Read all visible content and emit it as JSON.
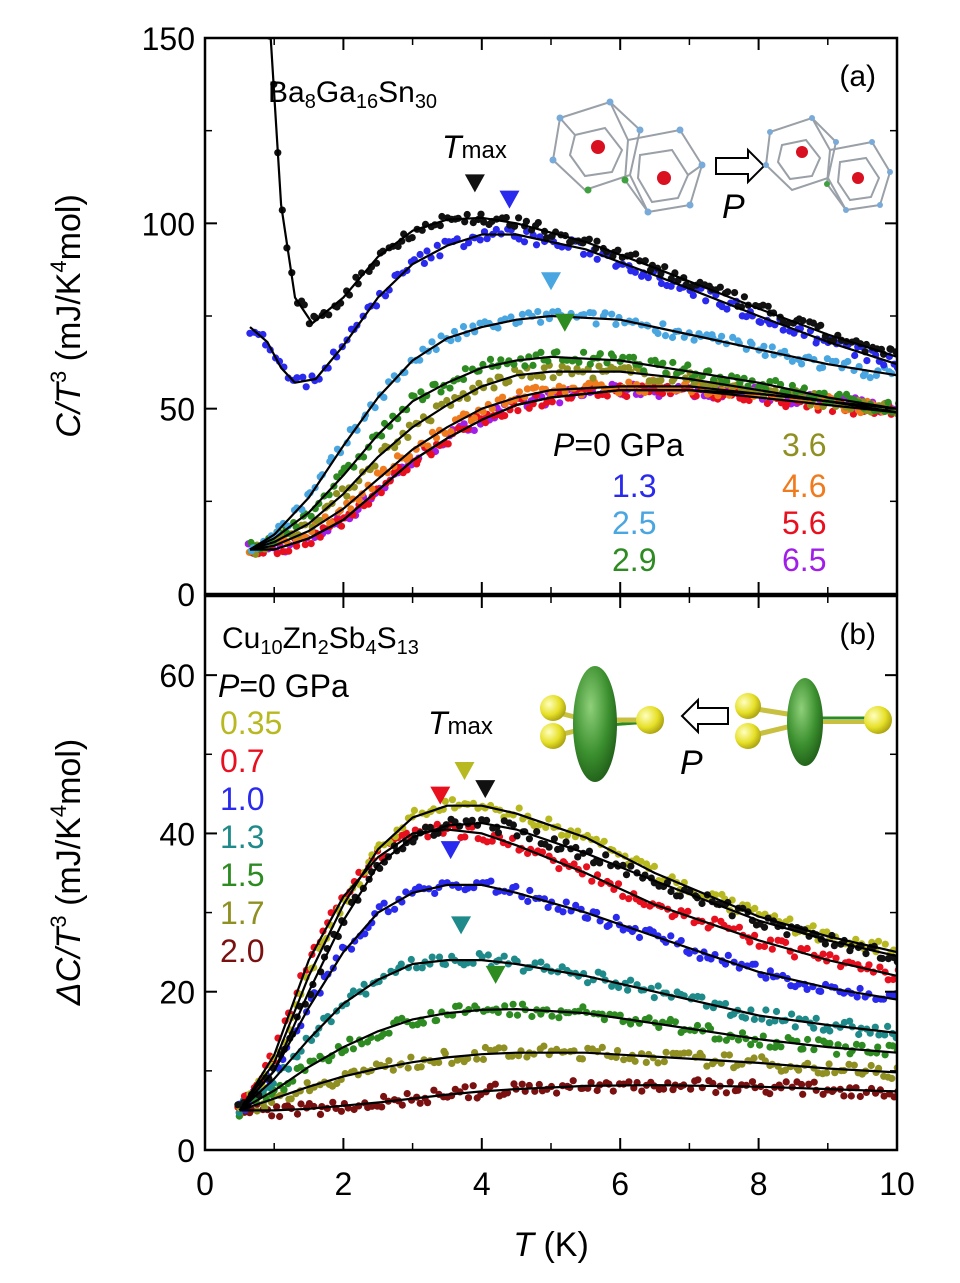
{
  "figure": {
    "x_axis": {
      "label_var": "T",
      "label_unit": " (K)",
      "ticks": [
        "0",
        "2",
        "4",
        "6",
        "8",
        "10"
      ],
      "range": [
        0,
        10
      ]
    }
  },
  "chart_data": [
    {
      "type": "scatter",
      "panel_label": "(a)",
      "compound": {
        "parts": [
          "Ba",
          "8",
          "Ga",
          "16",
          "Sn",
          "30"
        ]
      },
      "ylabel": {
        "left": "C/T",
        "sup": "3",
        "unit": " (mJ/K",
        "unit_sup": "4",
        "unit_end": "mol)"
      },
      "ylim": [
        0,
        150
      ],
      "yticks": [
        "0",
        "50",
        "100",
        "150"
      ],
      "tmax_label": {
        "main": "T",
        "sub": "max"
      },
      "pressure_arrow_label": "P",
      "legend": {
        "header_prefix": "P",
        "header_rest": "=0  GPa",
        "entries": [
          "1.3",
          "2.5",
          "2.9",
          "3.6",
          "4.6",
          "5.6",
          "6.5"
        ]
      },
      "series": [
        {
          "pressure": "0",
          "color": "#111111",
          "tmax": 3.9,
          "fit": [
            [
              0.95,
              150
            ],
            [
              1.1,
              105
            ],
            [
              1.3,
              80
            ],
            [
              1.55,
              73
            ],
            [
              2.0,
              80
            ],
            [
              2.5,
              91
            ],
            [
              3.0,
              98
            ],
            [
              3.5,
              101
            ],
            [
              4.0,
              101.5
            ],
            [
              4.5,
              100
            ],
            [
              5.5,
              95
            ],
            [
              6.5,
              88
            ],
            [
              8.0,
              77
            ],
            [
              9.0,
              70
            ],
            [
              10,
              64
            ]
          ]
        },
        {
          "pressure": "1.3",
          "color": "#2a2aee",
          "tmax": 4.4,
          "fit": [
            [
              0.65,
              72
            ],
            [
              0.9,
              68
            ],
            [
              1.1,
              61
            ],
            [
              1.3,
              57
            ],
            [
              1.6,
              58
            ],
            [
              2.0,
              67
            ],
            [
              2.5,
              80
            ],
            [
              3.0,
              89
            ],
            [
              3.5,
              94
            ],
            [
              4.0,
              97
            ],
            [
              4.5,
              97
            ],
            [
              5.5,
              93
            ],
            [
              6.5,
              86
            ],
            [
              8.0,
              75
            ],
            [
              9.0,
              68
            ],
            [
              10,
              62
            ]
          ]
        },
        {
          "pressure": "2.5",
          "color": "#4aa6e0",
          "tmax": 5.0,
          "fit": [
            [
              0.65,
              12
            ],
            [
              1.0,
              16
            ],
            [
              1.5,
              26
            ],
            [
              2.0,
              40
            ],
            [
              2.5,
              53
            ],
            [
              3.0,
              63
            ],
            [
              3.5,
              69
            ],
            [
              4.0,
              72
            ],
            [
              4.5,
              74
            ],
            [
              5.0,
              75
            ],
            [
              6.0,
              74
            ],
            [
              7.0,
              70
            ],
            [
              8.0,
              66
            ],
            [
              9.0,
              62
            ],
            [
              10,
              59
            ]
          ]
        },
        {
          "pressure": "2.9",
          "color": "#2e8b22",
          "tmax": 5.2,
          "fit": [
            [
              0.65,
              12
            ],
            [
              1.0,
              15
            ],
            [
              1.5,
              22
            ],
            [
              2.0,
              32
            ],
            [
              2.5,
              43
            ],
            [
              3.0,
              52
            ],
            [
              3.5,
              57
            ],
            [
              4.0,
              61
            ],
            [
              4.5,
              63
            ],
            [
              5.0,
              64
            ],
            [
              6.0,
              63
            ],
            [
              7.0,
              60
            ],
            [
              8.0,
              57
            ],
            [
              9.0,
              53
            ],
            [
              10,
              50
            ]
          ]
        },
        {
          "pressure": "3.6",
          "color": "#8f8f22",
          "tmax": null,
          "fit": [
            [
              0.65,
              12
            ],
            [
              1.0,
              14
            ],
            [
              1.5,
              19
            ],
            [
              2.0,
              27
            ],
            [
              2.5,
              37
            ],
            [
              3.0,
              45
            ],
            [
              3.5,
              51
            ],
            [
              4.0,
              56
            ],
            [
              4.5,
              59
            ],
            [
              5.0,
              60
            ],
            [
              6.0,
              60
            ],
            [
              7.0,
              58
            ],
            [
              8.0,
              55
            ],
            [
              9.0,
              52
            ],
            [
              10,
              49
            ]
          ]
        },
        {
          "pressure": "4.6",
          "color": "#f07a1e",
          "tmax": null,
          "fit": [
            [
              0.65,
              12
            ],
            [
              1.0,
              13
            ],
            [
              1.5,
              17
            ],
            [
              2.0,
              23
            ],
            [
              2.5,
              31
            ],
            [
              3.0,
              39
            ],
            [
              3.5,
              45
            ],
            [
              4.0,
              50
            ],
            [
              4.5,
              53
            ],
            [
              5.0,
              55
            ],
            [
              6.0,
              56
            ],
            [
              7.0,
              56
            ],
            [
              8.0,
              54
            ],
            [
              9.0,
              52
            ],
            [
              10,
              49
            ]
          ]
        },
        {
          "pressure": "5.6",
          "color": "#e8101e",
          "tmax": null,
          "fit": [
            [
              0.65,
              12
            ],
            [
              1.0,
              12
            ],
            [
              1.5,
              15
            ],
            [
              2.0,
              20
            ],
            [
              2.5,
              28
            ],
            [
              3.0,
              36
            ],
            [
              3.5,
              42
            ],
            [
              4.0,
              47
            ],
            [
              4.5,
              51
            ],
            [
              5.0,
              53
            ],
            [
              6.0,
              55
            ],
            [
              7.0,
              55
            ],
            [
              8.0,
              53
            ],
            [
              9.0,
              51
            ],
            [
              10,
              49
            ]
          ]
        },
        {
          "pressure": "6.5",
          "color": "#a01ee8",
          "tmax": null,
          "fit": [
            [
              0.65,
              12
            ],
            [
              1.0,
              12
            ],
            [
              1.5,
              15
            ],
            [
              2.0,
              20
            ],
            [
              2.5,
              28
            ],
            [
              3.0,
              36
            ],
            [
              3.5,
              42
            ],
            [
              4.0,
              47
            ],
            [
              4.5,
              51
            ],
            [
              5.0,
              53
            ],
            [
              6.0,
              55
            ],
            [
              7.0,
              55
            ],
            [
              8.0,
              54
            ],
            [
              9.0,
              52
            ],
            [
              10,
              50
            ]
          ]
        }
      ]
    },
    {
      "type": "scatter",
      "panel_label": "(b)",
      "compound": {
        "parts": [
          "Cu",
          "10",
          "Zn",
          "2",
          "Sb",
          "4",
          "S",
          "13"
        ]
      },
      "ylabel": {
        "left": "ΔC/T",
        "sup": "3",
        "unit": " (mJ/K",
        "unit_sup": "4",
        "unit_end": "mol)"
      },
      "ylim": [
        0,
        70
      ],
      "yticks": [
        "0",
        "20",
        "40",
        "60"
      ],
      "tmax_label": {
        "main": "T",
        "sub": "max"
      },
      "pressure_arrow_label": "P",
      "legend": {
        "header_prefix": "P",
        "header_rest": "=0  GPa",
        "entries": [
          "0.35",
          "0.7",
          "1.0",
          "1.3",
          "1.5",
          "1.7",
          "2.0"
        ]
      },
      "series": [
        {
          "pressure": "0",
          "color": "#111111",
          "tmax": 4.05,
          "fit": [
            [
              0.5,
              5
            ],
            [
              1.0,
              10
            ],
            [
              1.5,
              20
            ],
            [
              2.0,
              29
            ],
            [
              2.5,
              36
            ],
            [
              3.0,
              39.5
            ],
            [
              3.5,
              41
            ],
            [
              4.0,
              41.3
            ],
            [
              4.5,
              40.5
            ],
            [
              5.5,
              37.5
            ],
            [
              6.5,
              34
            ],
            [
              8.0,
              29
            ],
            [
              9.0,
              26.5
            ],
            [
              10,
              24.5
            ]
          ]
        },
        {
          "pressure": "0.35",
          "color": "#b8b820",
          "tmax": 3.75,
          "fit": [
            [
              0.5,
              5
            ],
            [
              1.0,
              11
            ],
            [
              1.5,
              22
            ],
            [
              2.0,
              31
            ],
            [
              2.5,
              38
            ],
            [
              3.0,
              42
            ],
            [
              3.5,
              43.5
            ],
            [
              4.0,
              43.5
            ],
            [
              4.5,
              42.5
            ],
            [
              5.5,
              39.5
            ],
            [
              6.5,
              35
            ],
            [
              8.0,
              29.5
            ],
            [
              9.0,
              27
            ],
            [
              10,
              25
            ]
          ]
        },
        {
          "pressure": "0.7",
          "color": "#e8101e",
          "tmax": 3.4,
          "fit": [
            [
              0.5,
              5
            ],
            [
              1.0,
              12
            ],
            [
              1.5,
              24
            ],
            [
              2.0,
              32
            ],
            [
              2.5,
              37
            ],
            [
              3.0,
              40
            ],
            [
              3.5,
              40.5
            ],
            [
              4.0,
              40
            ],
            [
              4.5,
              38.5
            ],
            [
              5.5,
              35
            ],
            [
              6.5,
              31
            ],
            [
              8.0,
              26.5
            ],
            [
              9.0,
              24
            ],
            [
              10,
              22
            ]
          ]
        },
        {
          "pressure": "1.0",
          "color": "#2a2aee",
          "tmax": 3.55,
          "fit": [
            [
              0.5,
              5
            ],
            [
              1.0,
              10
            ],
            [
              1.5,
              18
            ],
            [
              2.0,
              25
            ],
            [
              2.5,
              30
            ],
            [
              3.0,
              32.5
            ],
            [
              3.5,
              33.5
            ],
            [
              4.0,
              33.5
            ],
            [
              4.5,
              32.5
            ],
            [
              5.5,
              30
            ],
            [
              6.5,
              27
            ],
            [
              8.0,
              22.5
            ],
            [
              9.0,
              20.5
            ],
            [
              10,
              19
            ]
          ]
        },
        {
          "pressure": "1.3",
          "color": "#1f8a8a",
          "tmax": 3.7,
          "fit": [
            [
              0.5,
              5
            ],
            [
              1.0,
              9
            ],
            [
              1.5,
              14
            ],
            [
              2.0,
              18.5
            ],
            [
              2.5,
              21.5
            ],
            [
              3.0,
              23.5
            ],
            [
              3.5,
              24
            ],
            [
              4.0,
              24
            ],
            [
              4.5,
              23.5
            ],
            [
              5.5,
              22
            ],
            [
              6.5,
              20
            ],
            [
              8.0,
              17
            ],
            [
              9.0,
              15.8
            ],
            [
              10,
              14.8
            ]
          ]
        },
        {
          "pressure": "1.5",
          "color": "#2e8b22",
          "tmax": 4.2,
          "fit": [
            [
              0.5,
              5
            ],
            [
              1.0,
              7.5
            ],
            [
              1.5,
              10.5
            ],
            [
              2.0,
              13
            ],
            [
              2.5,
              15
            ],
            [
              3.0,
              16.5
            ],
            [
              3.5,
              17.3
            ],
            [
              4.0,
              17.7
            ],
            [
              4.5,
              17.8
            ],
            [
              5.5,
              17.3
            ],
            [
              6.5,
              16
            ],
            [
              8.0,
              14
            ],
            [
              9.0,
              13
            ],
            [
              10,
              12.3
            ]
          ]
        },
        {
          "pressure": "1.7",
          "color": "#8f8f22",
          "tmax": null,
          "fit": [
            [
              0.5,
              5
            ],
            [
              1.0,
              6.5
            ],
            [
              1.5,
              8
            ],
            [
              2.0,
              9.3
            ],
            [
              2.5,
              10.3
            ],
            [
              3.0,
              11.1
            ],
            [
              3.5,
              11.7
            ],
            [
              4.0,
              12.1
            ],
            [
              4.5,
              12.3
            ],
            [
              5.5,
              12.3
            ],
            [
              6.5,
              11.8
            ],
            [
              8.0,
              11
            ],
            [
              9.0,
              10.3
            ],
            [
              10,
              9.8
            ]
          ]
        },
        {
          "pressure": "2.0",
          "color": "#7a1010",
          "tmax": null,
          "fit": [
            [
              0.5,
              5
            ],
            [
              1.0,
              5
            ],
            [
              1.5,
              5.2
            ],
            [
              2.0,
              5.6
            ],
            [
              2.5,
              6
            ],
            [
              3.0,
              6.5
            ],
            [
              3.5,
              7
            ],
            [
              4.0,
              7.4
            ],
            [
              4.5,
              7.7
            ],
            [
              5.5,
              8.1
            ],
            [
              6.5,
              8.2
            ],
            [
              8.0,
              8
            ],
            [
              9.0,
              7.7
            ],
            [
              10,
              7.4
            ]
          ]
        }
      ]
    }
  ]
}
